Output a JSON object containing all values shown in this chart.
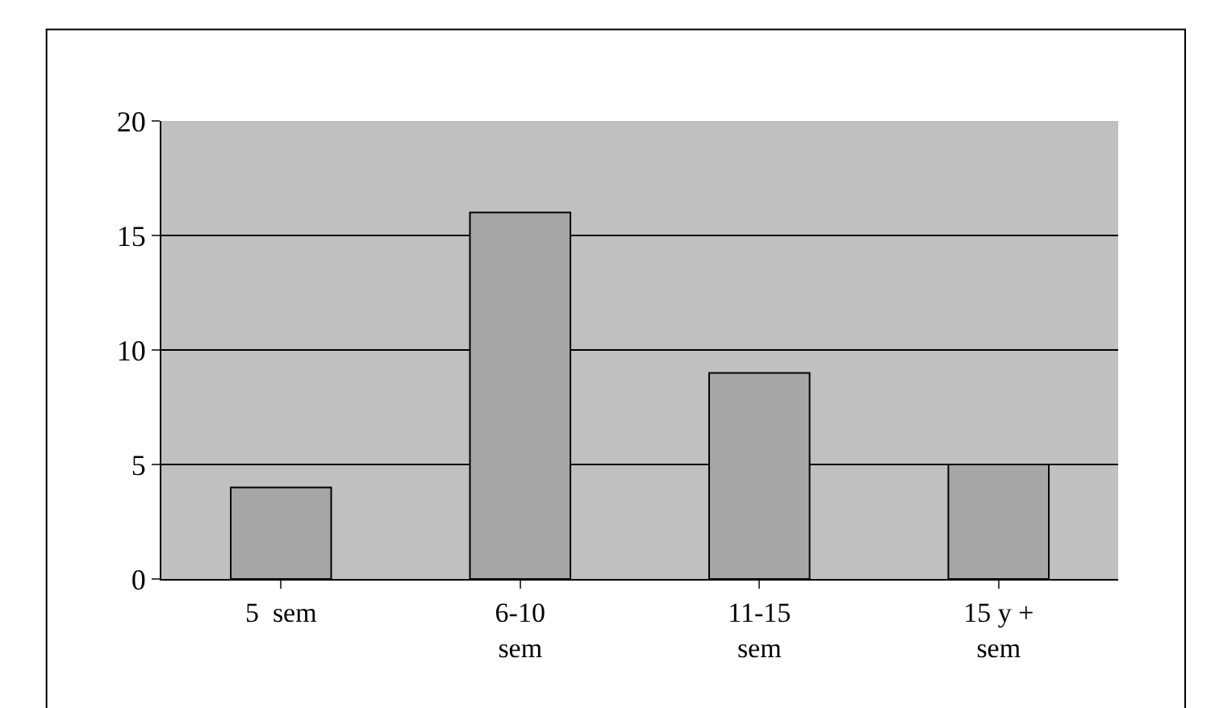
{
  "chart_data": {
    "type": "bar",
    "categories": [
      "5  sem",
      "6-10\nsem",
      "11-15\nsem",
      "15 y +\nsem"
    ],
    "values": [
      4,
      16,
      9,
      5
    ],
    "color": "#a6a6a6",
    "ylim": [
      0,
      20
    ],
    "yticks": [
      0,
      5,
      10,
      15,
      20
    ],
    "grid": "y"
  }
}
